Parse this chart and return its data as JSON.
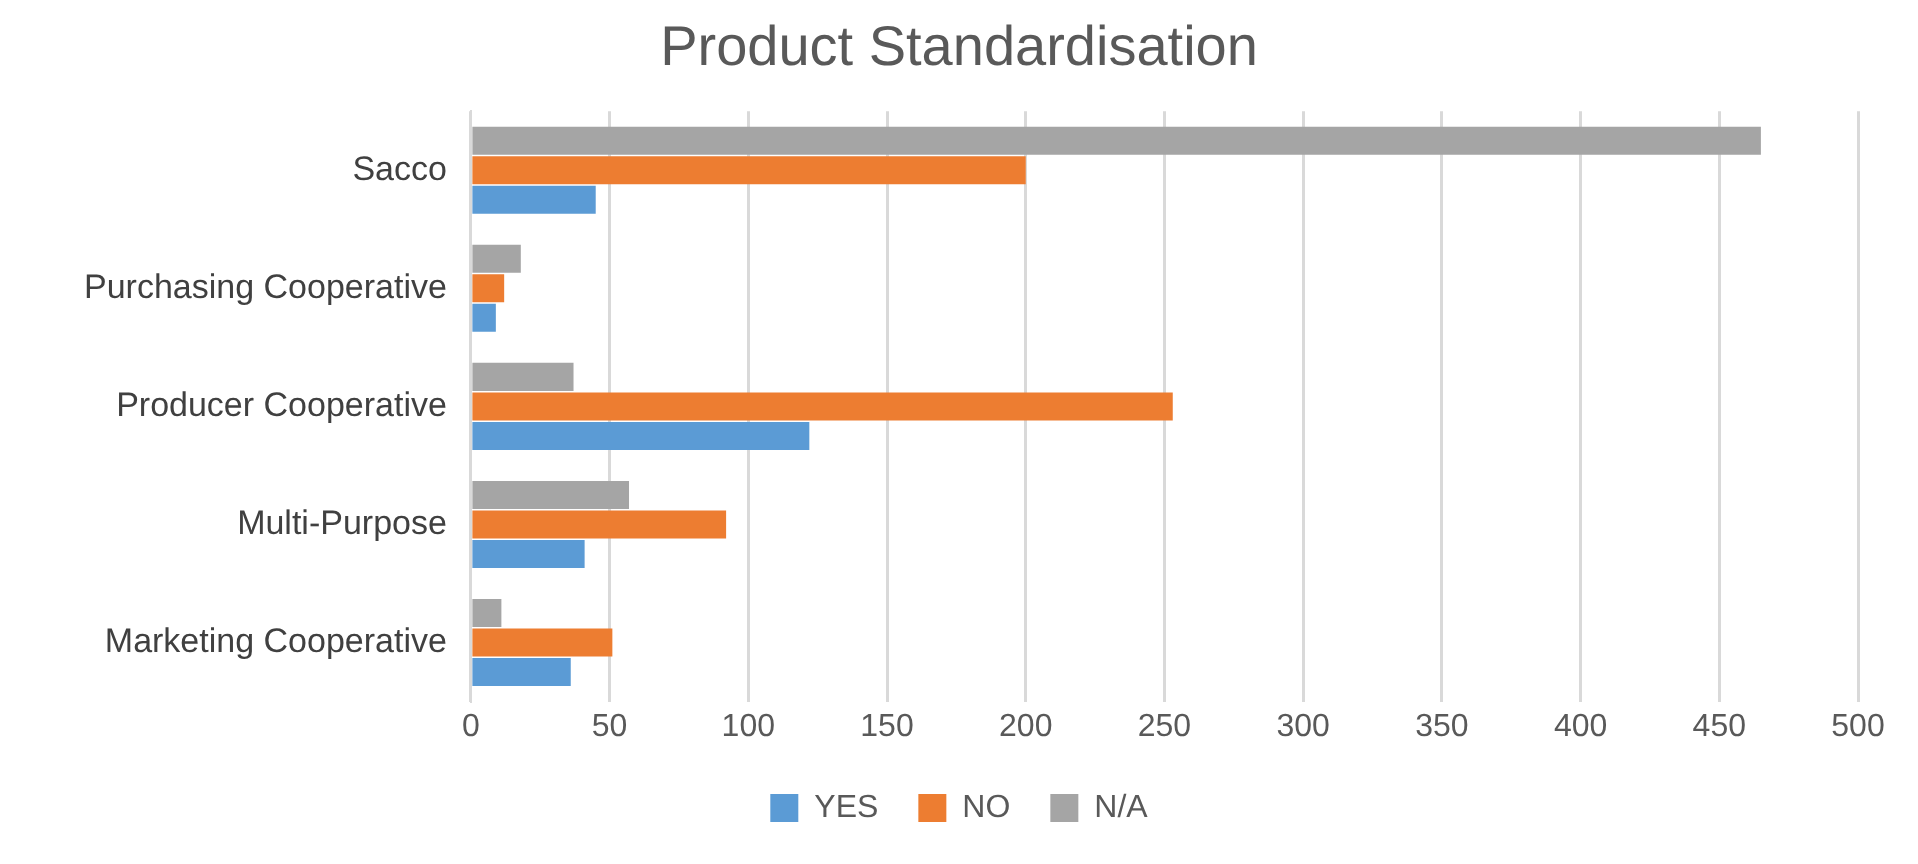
{
  "chart_data": {
    "type": "bar",
    "orientation": "horizontal",
    "title": "Product Standardisation",
    "categories": [
      "Sacco",
      "Purchasing Cooperative",
      "Producer Cooperative",
      "Multi-Purpose",
      "Marketing Cooperative"
    ],
    "series": [
      {
        "name": "YES",
        "color": "#5b9bd5",
        "values": [
          45,
          9,
          122,
          41,
          36
        ]
      },
      {
        "name": "NO",
        "color": "#ed7d31",
        "values": [
          200,
          12,
          253,
          92,
          51
        ]
      },
      {
        "name": "N/A",
        "color": "#a5a5a5",
        "values": [
          465,
          18,
          37,
          57,
          11
        ]
      }
    ],
    "xlim": [
      0,
      500
    ],
    "xticks": [
      0,
      50,
      100,
      150,
      200,
      250,
      300,
      350,
      400,
      450,
      500
    ],
    "grid": "x",
    "legend": "bottom"
  }
}
